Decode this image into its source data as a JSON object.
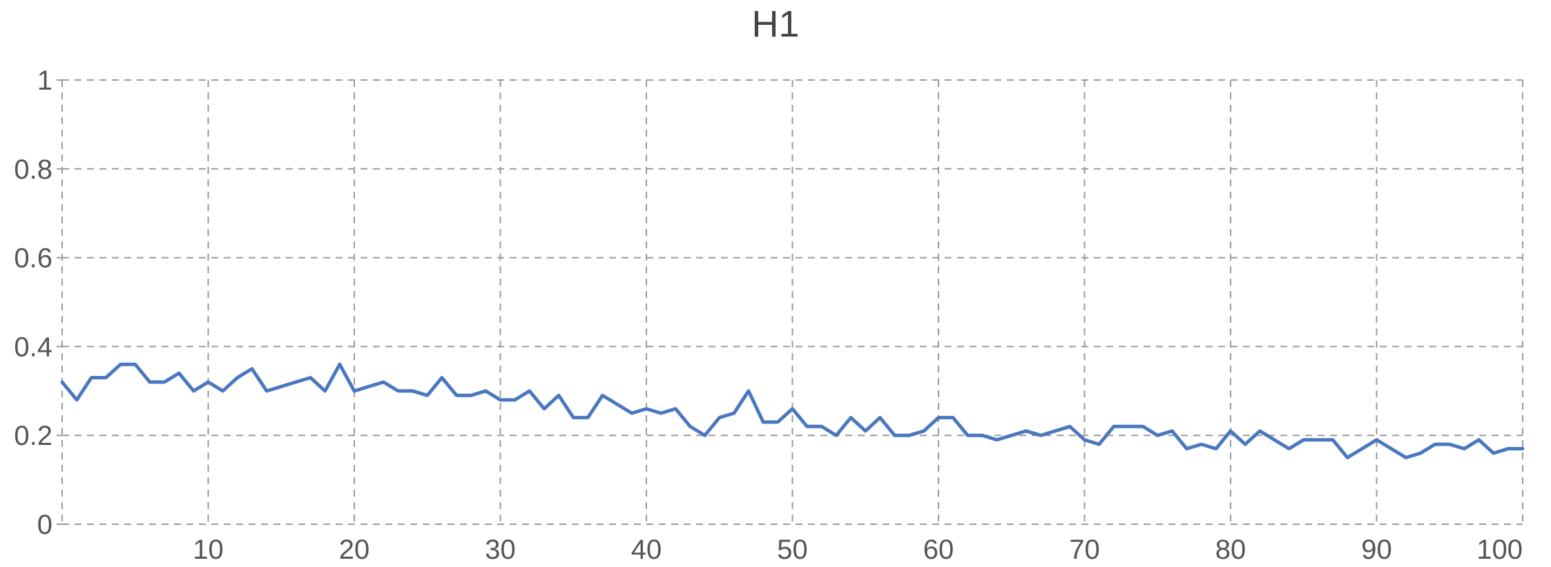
{
  "chart_data": {
    "type": "line",
    "title": "H1",
    "xlabel": "",
    "ylabel": "",
    "xlim": [
      0,
      100
    ],
    "ylim": [
      0,
      1
    ],
    "xticks": [
      10,
      20,
      30,
      40,
      50,
      60,
      70,
      80,
      90,
      100
    ],
    "yticks": [
      0,
      0.2,
      0.4,
      0.6,
      0.8,
      1
    ],
    "ytick_labels": [
      "0",
      "0.2",
      "0.4",
      "0.6",
      "0.8",
      "1"
    ],
    "grid": true,
    "color": "#4a78c0",
    "series": [
      {
        "x": [
          0,
          1,
          2,
          3,
          4,
          5,
          6,
          7,
          8,
          9,
          10,
          11,
          12,
          13,
          14,
          15,
          16,
          17,
          18,
          19,
          20,
          21,
          22,
          23,
          24,
          25,
          26,
          27,
          28,
          29,
          30,
          31,
          32,
          33,
          34,
          35,
          36,
          37,
          38,
          39,
          40,
          41,
          42,
          43,
          44,
          45,
          46,
          47,
          48,
          49,
          50,
          51,
          52,
          53,
          54,
          55,
          56,
          57,
          58,
          59,
          60,
          61,
          62,
          63,
          64,
          65,
          66,
          67,
          68,
          69,
          70,
          71,
          72,
          73,
          74,
          75,
          76,
          77,
          78,
          79,
          80,
          81,
          82,
          83,
          84,
          85,
          86,
          87,
          88,
          89,
          90,
          91,
          92,
          93,
          94,
          95,
          96,
          97,
          98,
          99,
          100
        ],
        "values": [
          0.32,
          0.28,
          0.33,
          0.33,
          0.36,
          0.36,
          0.32,
          0.32,
          0.34,
          0.3,
          0.32,
          0.3,
          0.33,
          0.35,
          0.3,
          0.31,
          0.32,
          0.33,
          0.3,
          0.36,
          0.3,
          0.31,
          0.32,
          0.3,
          0.3,
          0.29,
          0.33,
          0.29,
          0.29,
          0.3,
          0.28,
          0.28,
          0.3,
          0.26,
          0.29,
          0.24,
          0.24,
          0.29,
          0.27,
          0.25,
          0.26,
          0.25,
          0.26,
          0.22,
          0.2,
          0.24,
          0.25,
          0.3,
          0.23,
          0.23,
          0.26,
          0.22,
          0.22,
          0.2,
          0.24,
          0.21,
          0.24,
          0.2,
          0.2,
          0.21,
          0.24,
          0.24,
          0.2,
          0.2,
          0.19,
          0.2,
          0.21,
          0.2,
          0.21,
          0.22,
          0.19,
          0.18,
          0.22,
          0.22,
          0.22,
          0.2,
          0.21,
          0.17,
          0.18,
          0.17,
          0.21,
          0.18,
          0.21,
          0.19,
          0.17,
          0.19,
          0.19,
          0.19,
          0.15,
          0.17,
          0.19,
          0.17,
          0.15,
          0.16,
          0.18,
          0.18,
          0.17,
          0.19,
          0.16,
          0.17,
          0.17
        ]
      }
    ]
  }
}
